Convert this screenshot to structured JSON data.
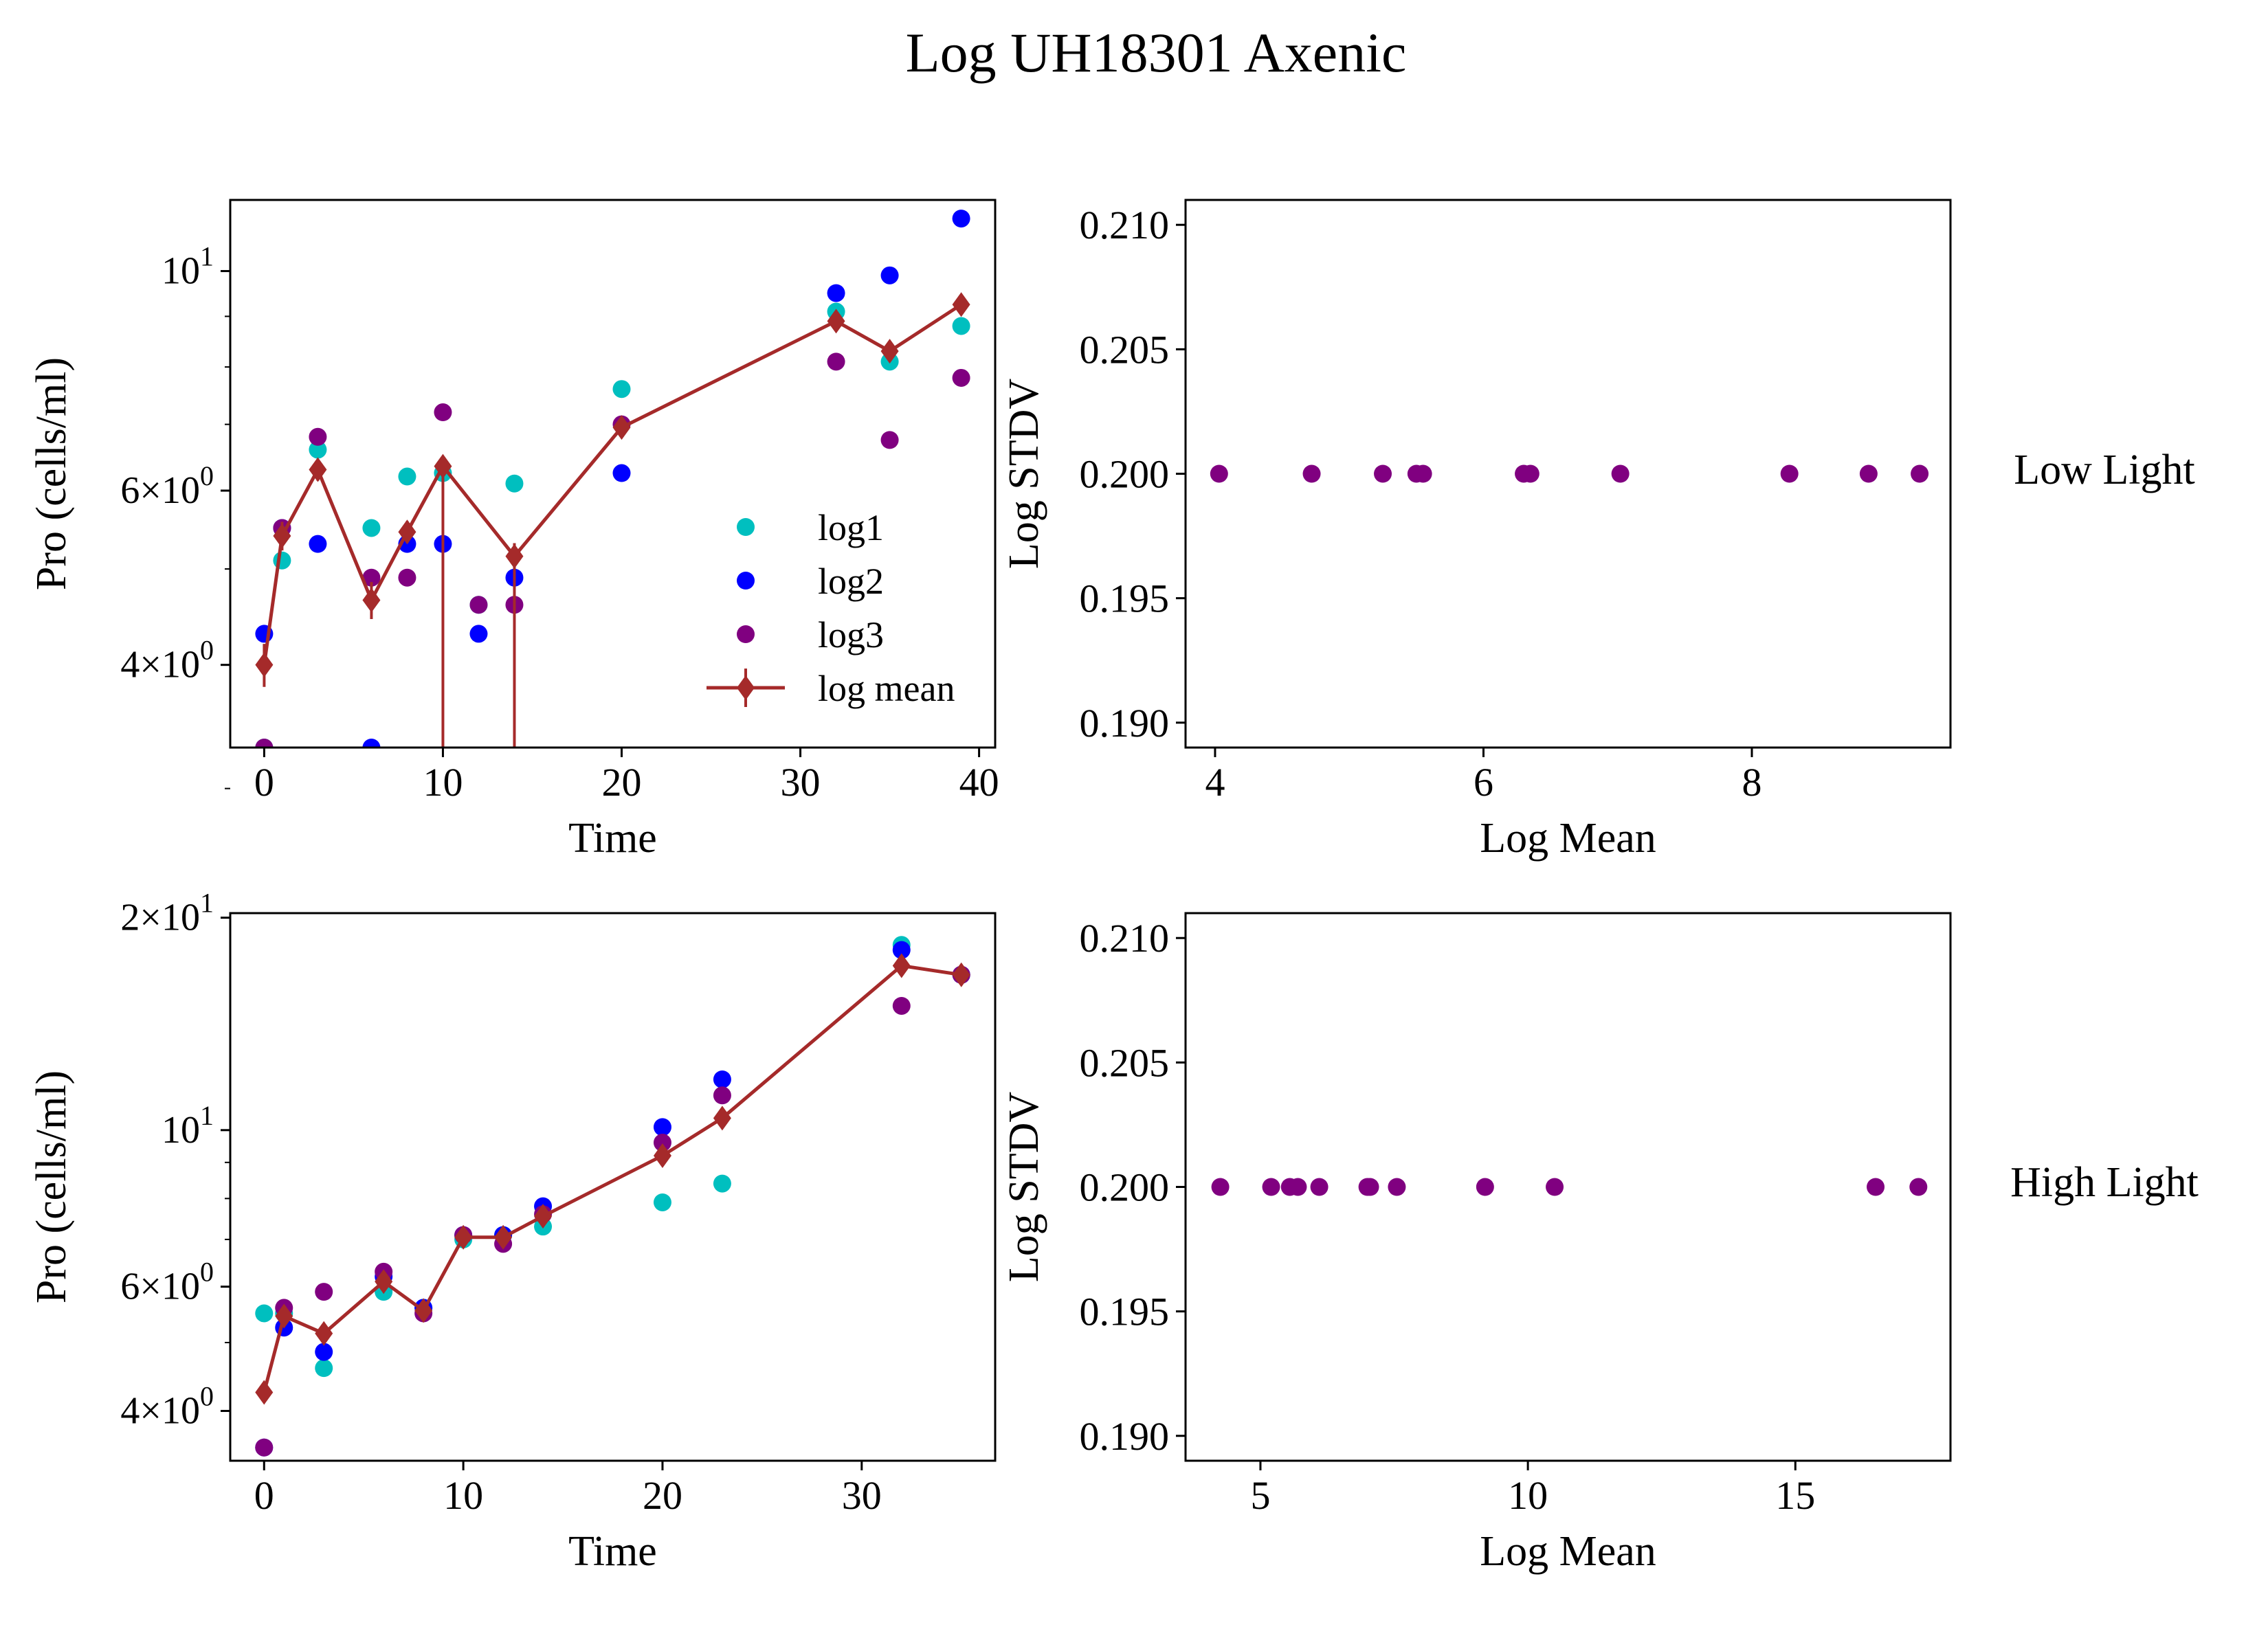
{
  "figure": {
    "title": "Log UH18301 Axenic",
    "panel_labels": [
      "Low Light",
      "High Light"
    ]
  },
  "colors": {
    "log1": "#00bfbf",
    "log2": "#0000ff",
    "log3": "#800080",
    "mean": "#a52a2a"
  },
  "chart_data": [
    {
      "type": "scatter",
      "panel": "top-left",
      "title": "",
      "xlabel": "Time",
      "ylabel": "Pro (cells/ml)",
      "yscale": "log",
      "xlim": [
        -1.9,
        40.9
      ],
      "ylim": [
        3.3,
        11.8
      ],
      "xticks": [
        0,
        10,
        20,
        30,
        40
      ],
      "yticks_major": [
        {
          "value": 4,
          "mantissa": "4",
          "exponent": "0"
        },
        {
          "value": 6,
          "mantissa": "6",
          "exponent": "0"
        },
        {
          "value": 10,
          "mantissa": "",
          "exponent": "1"
        }
      ],
      "yticks_minor": [
        3,
        5,
        7,
        8,
        9
      ],
      "legend": {
        "placement": "lower-right",
        "entries": [
          "log1",
          "log2",
          " log3",
          "log mean"
        ]
      },
      "series": [
        {
          "name": "log1",
          "style": "points",
          "x": [
            0,
            1,
            3,
            6,
            8,
            10,
            12,
            14,
            20,
            32,
            35,
            39
          ],
          "y": [
            3.3,
            5.1,
            6.6,
            5.5,
            6.2,
            6.25,
            4.6,
            6.1,
            7.6,
            9.1,
            8.1,
            8.8
          ]
        },
        {
          "name": "log2",
          "style": "points",
          "x": [
            0,
            1,
            3,
            6,
            8,
            10,
            12,
            14,
            20,
            32,
            35,
            39
          ],
          "y": [
            4.3,
            5.5,
            5.3,
            3.3,
            5.3,
            5.3,
            4.3,
            4.9,
            6.25,
            9.5,
            9.9,
            11.3
          ]
        },
        {
          "name": " log3",
          "style": "points",
          "x": [
            0,
            1,
            3,
            6,
            8,
            10,
            12,
            14,
            20,
            32,
            35,
            39
          ],
          "y": [
            3.3,
            5.5,
            6.8,
            4.9,
            4.9,
            7.2,
            4.6,
            4.6,
            7.0,
            8.1,
            6.75,
            7.8
          ]
        },
        {
          "name": "log mean",
          "style": "line-errorbar",
          "x": [
            0,
            1,
            3,
            6,
            8,
            10,
            14,
            20,
            32,
            35,
            39
          ],
          "y": [
            4.0,
            5.4,
            6.3,
            4.65,
            5.45,
            6.35,
            5.15,
            6.95,
            8.9,
            8.3,
            9.25
          ],
          "yerr": [
            0.2,
            0.18,
            0.16,
            0.2,
            0.14,
            0.14,
            0.16,
            0.06,
            0.1,
            0.08,
            0.08
          ],
          "err_down_to_axis": [
            false,
            false,
            false,
            false,
            false,
            true,
            true,
            false,
            false,
            false,
            false
          ]
        }
      ]
    },
    {
      "type": "scatter",
      "panel": "top-right",
      "title": "",
      "xlabel": "Log Mean",
      "ylabel": "Log STDV",
      "xlim": [
        3.78,
        9.48
      ],
      "ylim": [
        0.189,
        0.211
      ],
      "xticks": [
        4,
        6,
        8
      ],
      "yticks": [
        0.19,
        0.195,
        0.2,
        0.205,
        0.21
      ],
      "ytick_labels": [
        "0.190",
        "0.195",
        "0.200",
        "0.205",
        "0.210"
      ],
      "series": [
        {
          "style": "points",
          "x": [
            4.03,
            4.72,
            5.25,
            5.5,
            5.55,
            6.3,
            6.35,
            7.02,
            8.28,
            8.87,
            9.25
          ],
          "y": [
            0.2,
            0.2,
            0.2,
            0.2,
            0.2,
            0.2,
            0.2,
            0.2,
            0.2,
            0.2,
            0.2
          ]
        }
      ]
    },
    {
      "type": "scatter",
      "panel": "bottom-left",
      "title": "",
      "xlabel": "Time",
      "ylabel": "Pro (cells/ml)",
      "yscale": "log",
      "xlim": [
        -1.7,
        36.7
      ],
      "ylim": [
        3.4,
        20.3
      ],
      "xticks": [
        0,
        10,
        20,
        30
      ],
      "yticks_major": [
        {
          "value": 4,
          "mantissa": "4",
          "exponent": "0"
        },
        {
          "value": 6,
          "mantissa": "6",
          "exponent": "0"
        },
        {
          "value": 10,
          "mantissa": "",
          "exponent": "1"
        },
        {
          "value": 20,
          "mantissa": "2",
          "exponent": "1"
        }
      ],
      "yticks_minor": [
        5,
        7,
        8,
        9
      ],
      "series": [
        {
          "name": "log1",
          "style": "points",
          "x": [
            0,
            1,
            3,
            6,
            8,
            10,
            12,
            14,
            20,
            23,
            32,
            35
          ],
          "y": [
            5.5,
            5.5,
            4.6,
            5.9,
            5.6,
            7.0,
            7.1,
            7.3,
            7.9,
            8.4,
            18.3,
            16.6
          ]
        },
        {
          "name": "log2",
          "style": "points",
          "x": [
            0,
            1,
            3,
            6,
            8,
            10,
            12,
            14,
            20,
            23,
            32,
            35
          ],
          "y": [
            3.55,
            5.25,
            4.85,
            6.2,
            5.6,
            7.1,
            7.1,
            7.8,
            10.1,
            11.8,
            18.0,
            16.6
          ]
        },
        {
          "name": " log3",
          "style": "points",
          "x": [
            0,
            1,
            3,
            6,
            8,
            10,
            12,
            14,
            20,
            23,
            32,
            35
          ],
          "y": [
            3.55,
            5.6,
            5.9,
            6.3,
            5.5,
            7.1,
            6.9,
            7.6,
            9.6,
            11.2,
            15.0,
            16.6
          ]
        },
        {
          "name": "log mean",
          "style": "line-errorbar",
          "x": [
            0,
            1,
            3,
            6,
            8,
            10,
            12,
            14,
            20,
            23,
            32,
            35
          ],
          "y": [
            4.25,
            5.45,
            5.15,
            6.1,
            5.55,
            7.05,
            7.05,
            7.55,
            9.2,
            10.4,
            17.1,
            16.6
          ],
          "yerr": [
            0.12,
            0.12,
            0.12,
            0.14,
            0.12,
            0.14,
            0.14,
            0.16,
            0.2,
            0.24,
            0.4,
            0.35
          ]
        }
      ]
    },
    {
      "type": "scatter",
      "panel": "bottom-right",
      "title": "",
      "xlabel": "Log Mean",
      "ylabel": "Log STDV",
      "xlim": [
        3.6,
        17.9
      ],
      "ylim": [
        0.189,
        0.211
      ],
      "xticks": [
        5,
        10,
        15
      ],
      "yticks": [
        0.19,
        0.195,
        0.2,
        0.205,
        0.21
      ],
      "ytick_labels": [
        "0.190",
        "0.195",
        "0.200",
        "0.205",
        "0.210"
      ],
      "series": [
        {
          "style": "points",
          "x": [
            4.25,
            5.2,
            5.55,
            5.7,
            6.1,
            7.0,
            7.05,
            7.55,
            9.2,
            10.5,
            16.5,
            17.3
          ],
          "y": [
            0.2,
            0.2,
            0.2,
            0.2,
            0.2,
            0.2,
            0.2,
            0.2,
            0.2,
            0.2,
            0.2,
            0.2
          ]
        }
      ]
    }
  ]
}
